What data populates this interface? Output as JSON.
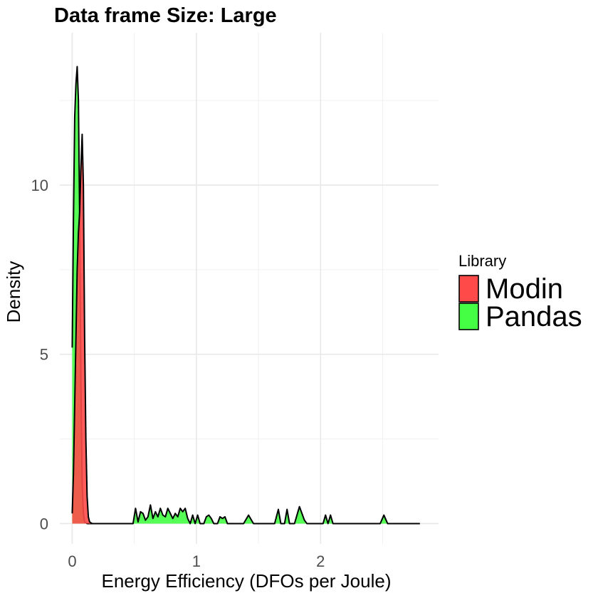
{
  "chart_data": {
    "type": "area",
    "title": "Data frame Size: Large",
    "xlabel": "Energy Efficiency (DFOs per Joule)",
    "ylabel": "Density",
    "xlim": [
      -0.1,
      2.95
    ],
    "ylim": [
      -0.6,
      14.5
    ],
    "x_ticks": [
      0,
      1,
      2
    ],
    "x_minor_ticks": [
      0.5,
      1.5,
      2.5
    ],
    "y_ticks": [
      0,
      5,
      10
    ],
    "y_minor_ticks": [
      2.5,
      7.5,
      12.5
    ],
    "grid": true,
    "legend": {
      "title": "Library",
      "placement": "right",
      "entries": [
        {
          "name": "Modin",
          "color": "#ff4a4a"
        },
        {
          "name": "Pandas",
          "color": "#44ff44"
        }
      ]
    },
    "series": [
      {
        "name": "Pandas",
        "color": "#44ff44",
        "x": [
          0.0,
          0.01,
          0.02,
          0.03,
          0.04,
          0.05,
          0.06,
          0.07,
          0.08,
          0.09,
          0.1,
          0.12,
          0.15,
          0.2,
          0.3,
          0.4,
          0.49,
          0.51,
          0.53,
          0.55,
          0.57,
          0.59,
          0.61,
          0.63,
          0.65,
          0.67,
          0.69,
          0.71,
          0.73,
          0.75,
          0.77,
          0.79,
          0.81,
          0.83,
          0.85,
          0.87,
          0.89,
          0.91,
          0.93,
          0.95,
          0.97,
          0.99,
          1.01,
          1.03,
          1.06,
          1.08,
          1.1,
          1.12,
          1.14,
          1.17,
          1.19,
          1.21,
          1.23,
          1.25,
          1.28,
          1.38,
          1.42,
          1.46,
          1.63,
          1.66,
          1.68,
          1.71,
          1.73,
          1.75,
          1.77,
          1.79,
          1.81,
          1.83,
          1.85,
          1.87,
          1.89,
          1.95,
          2.02,
          2.04,
          2.06,
          2.08,
          2.1,
          2.14,
          2.48,
          2.51,
          2.54,
          2.6,
          2.8
        ],
        "y": [
          5.2,
          9.0,
          12.0,
          13.0,
          13.5,
          12.5,
          9.0,
          4.2,
          1.2,
          0.3,
          0.05,
          0.0,
          0.0,
          0.0,
          0.0,
          0.0,
          0.0,
          0.45,
          0.05,
          0.35,
          0.3,
          0.1,
          0.2,
          0.55,
          0.15,
          0.35,
          0.2,
          0.45,
          0.25,
          0.2,
          0.45,
          0.3,
          0.15,
          0.3,
          0.2,
          0.45,
          0.35,
          0.45,
          0.15,
          0.0,
          0.25,
          0.0,
          0.25,
          0.0,
          0.0,
          0.2,
          0.25,
          0.15,
          0.0,
          0.0,
          0.2,
          0.15,
          0.2,
          0.0,
          0.0,
          0.0,
          0.25,
          0.0,
          0.0,
          0.42,
          0.0,
          0.0,
          0.42,
          0.0,
          0.0,
          0.0,
          0.25,
          0.5,
          0.3,
          0.1,
          0.0,
          0.0,
          0.0,
          0.25,
          0.0,
          0.25,
          0.0,
          0.0,
          0.0,
          0.25,
          0.0,
          0.0,
          0.0
        ]
      },
      {
        "name": "Modin",
        "color": "#ff4a4a",
        "x": [
          0.0,
          0.01,
          0.02,
          0.03,
          0.04,
          0.05,
          0.06,
          0.07,
          0.08,
          0.09,
          0.1,
          0.11,
          0.12,
          0.13,
          0.14,
          0.16,
          0.2
        ],
        "y": [
          0.3,
          1.5,
          3.5,
          5.5,
          7.5,
          8.6,
          9.2,
          10.5,
          11.5,
          10.0,
          5.5,
          2.5,
          0.8,
          0.2,
          0.05,
          0.0,
          0.0
        ]
      }
    ]
  }
}
